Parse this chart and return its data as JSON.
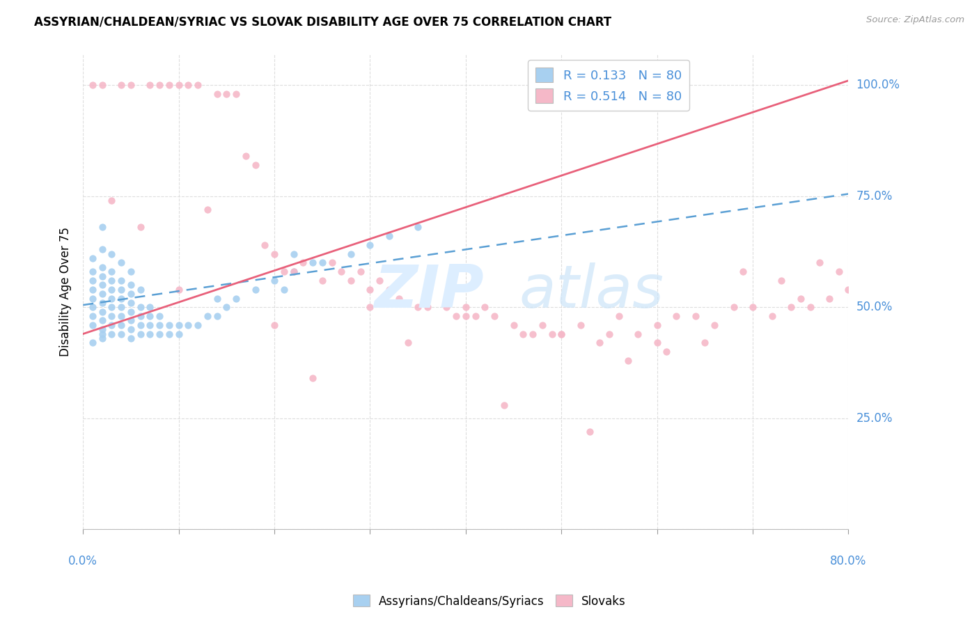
{
  "title": "ASSYRIAN/CHALDEAN/SYRIAC VS SLOVAK DISABILITY AGE OVER 75 CORRELATION CHART",
  "source": "Source: ZipAtlas.com",
  "ylabel": "Disability Age Over 75",
  "xlim": [
    0.0,
    80.0
  ],
  "ylim": [
    0.0,
    107.0
  ],
  "blue_R": 0.133,
  "blue_N": 80,
  "pink_R": 0.514,
  "pink_N": 80,
  "blue_color": "#a8d0f0",
  "pink_color": "#f5b8c8",
  "blue_line_color": "#5a9fd4",
  "pink_line_color": "#e8607a",
  "legend_label_blue": "Assyrians/Chaldeans/Syriacs",
  "legend_label_pink": "Slovaks",
  "blue_line_x": [
    0,
    80
  ],
  "blue_line_y": [
    50.5,
    75.5
  ],
  "pink_line_x": [
    0,
    80
  ],
  "pink_line_y": [
    44.0,
    101.0
  ],
  "blue_scatter_x": [
    1,
    1,
    1,
    1,
    1,
    1,
    1,
    1,
    1,
    2,
    2,
    2,
    2,
    2,
    2,
    2,
    2,
    2,
    2,
    2,
    2,
    3,
    3,
    3,
    3,
    3,
    3,
    3,
    3,
    3,
    4,
    4,
    4,
    4,
    4,
    4,
    4,
    4,
    5,
    5,
    5,
    5,
    5,
    5,
    5,
    5,
    6,
    6,
    6,
    6,
    6,
    7,
    7,
    7,
    7,
    8,
    8,
    8,
    9,
    9,
    10,
    10,
    11,
    12,
    13,
    14,
    14,
    15,
    16,
    18,
    20,
    21,
    22,
    22,
    24,
    25,
    28,
    30,
    32,
    35
  ],
  "blue_scatter_y": [
    42,
    46,
    48,
    50,
    52,
    54,
    56,
    58,
    61,
    43,
    45,
    47,
    49,
    51,
    53,
    55,
    57,
    59,
    63,
    68,
    44,
    44,
    46,
    48,
    50,
    52,
    54,
    56,
    58,
    62,
    44,
    46,
    48,
    50,
    52,
    54,
    56,
    60,
    43,
    45,
    47,
    49,
    51,
    53,
    55,
    58,
    44,
    46,
    48,
    50,
    54,
    44,
    46,
    48,
    50,
    44,
    46,
    48,
    44,
    46,
    44,
    46,
    46,
    46,
    48,
    48,
    52,
    50,
    52,
    54,
    56,
    54,
    58,
    62,
    60,
    60,
    62,
    64,
    66,
    68
  ],
  "pink_scatter_x": [
    1,
    2,
    4,
    5,
    7,
    8,
    9,
    10,
    11,
    12,
    14,
    15,
    16,
    17,
    18,
    19,
    20,
    21,
    22,
    23,
    25,
    26,
    27,
    28,
    29,
    30,
    31,
    32,
    33,
    35,
    36,
    38,
    39,
    40,
    41,
    42,
    43,
    45,
    46,
    47,
    48,
    49,
    50,
    52,
    54,
    55,
    56,
    58,
    60,
    62,
    64,
    66,
    68,
    70,
    72,
    74,
    75,
    76,
    78,
    80,
    3,
    6,
    13,
    24,
    34,
    44,
    53,
    57,
    61,
    65,
    69,
    73,
    77,
    79,
    10,
    20,
    30,
    40,
    50,
    60
  ],
  "pink_scatter_y": [
    100,
    100,
    100,
    100,
    100,
    100,
    100,
    100,
    100,
    100,
    98,
    98,
    98,
    84,
    82,
    64,
    62,
    58,
    58,
    60,
    56,
    60,
    58,
    56,
    58,
    54,
    56,
    54,
    52,
    50,
    50,
    50,
    48,
    50,
    48,
    50,
    48,
    46,
    44,
    44,
    46,
    44,
    44,
    46,
    42,
    44,
    48,
    44,
    46,
    48,
    48,
    46,
    50,
    50,
    48,
    50,
    52,
    50,
    52,
    54,
    74,
    68,
    72,
    34,
    42,
    28,
    22,
    38,
    40,
    42,
    58,
    56,
    60,
    58,
    54,
    46,
    50,
    48,
    44,
    42
  ]
}
